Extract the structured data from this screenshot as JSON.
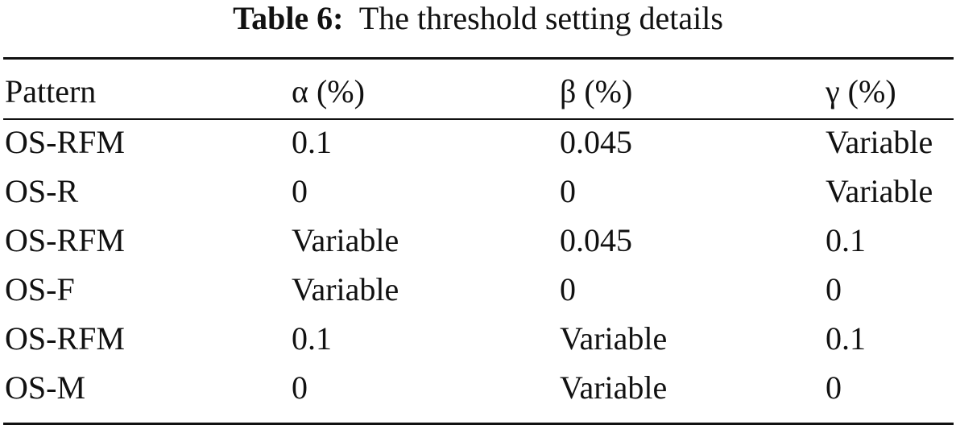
{
  "caption": {
    "label": "Table 6:",
    "text": "The threshold setting details"
  },
  "table": {
    "header": [
      "Pattern",
      "α (%)",
      "β (%)",
      "γ (%)"
    ],
    "rows": [
      [
        "OS-RFM",
        "0.1",
        "0.045",
        "Variable"
      ],
      [
        "OS-R",
        "0",
        "0",
        "Variable"
      ],
      [
        "OS-RFM",
        "Variable",
        "0.045",
        "0.1"
      ],
      [
        "OS-F",
        "Variable",
        "0",
        "0"
      ],
      [
        "OS-RFM",
        "0.1",
        "Variable",
        "0.1"
      ],
      [
        "OS-M",
        "0",
        "Variable",
        "0"
      ]
    ]
  }
}
